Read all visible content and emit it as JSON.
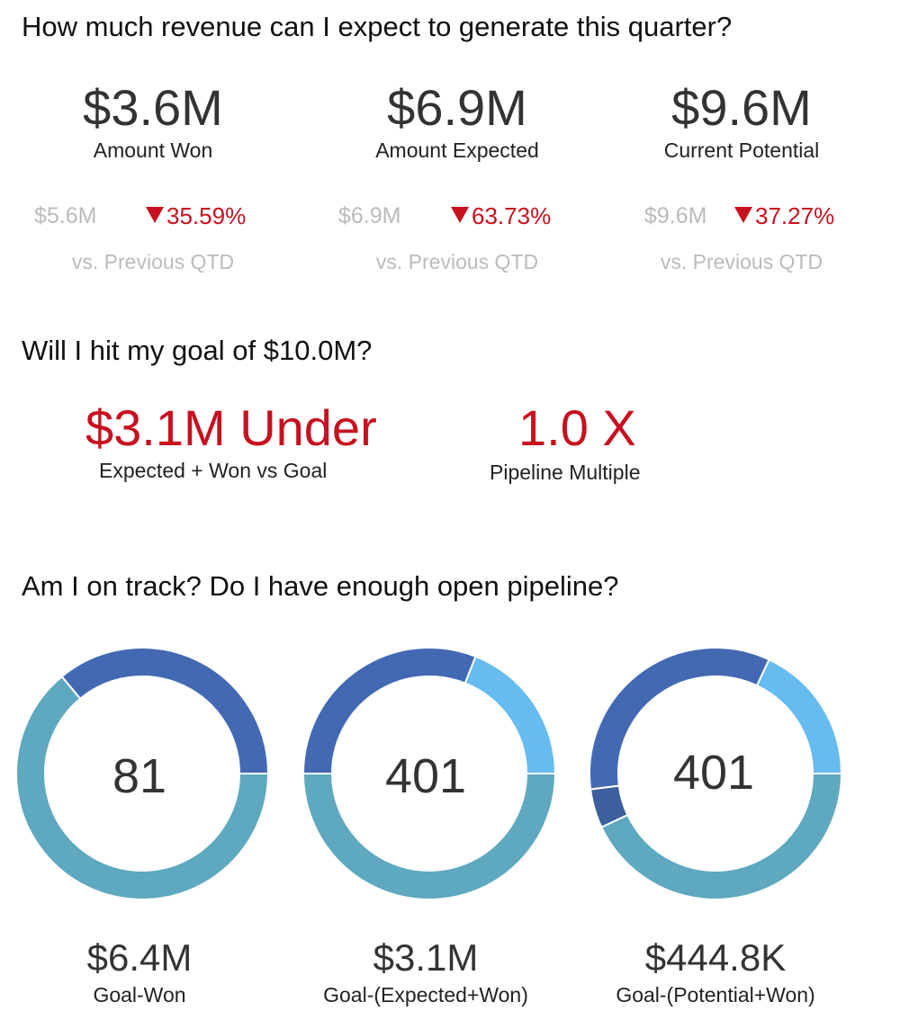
{
  "section1": {
    "title": "How much revenue can I expect to generate this quarter?",
    "kpis": [
      {
        "value": "$3.6M",
        "label": "Amount Won",
        "prev": "$5.6M",
        "delta": "35.59%",
        "vs": "vs. Previous QTD"
      },
      {
        "value": "$6.9M",
        "label": "Amount Expected",
        "prev": "$6.9M",
        "delta": "63.73%",
        "vs": "vs. Previous QTD"
      },
      {
        "value": "$9.6M",
        "label": "Current Potential",
        "prev": "$9.6M",
        "delta": "37.27%",
        "vs": "vs. Previous QTD"
      }
    ]
  },
  "section2": {
    "title": "Will I hit my goal of $10.0M?",
    "under_value": "$3.1M Under",
    "under_label": "Expected + Won vs Goal",
    "multiple_value": "1.0 X",
    "multiple_label": "Pipeline Multiple"
  },
  "section3": {
    "title": "Am I on track? Do I have enough open pipeline?",
    "donuts": [
      {
        "center": "81",
        "value": "$6.4M",
        "label": "Goal-Won"
      },
      {
        "center": "401",
        "value": "$3.1M",
        "label": "Goal-(Expected+Won)"
      },
      {
        "center": "401",
        "value": "$444.8K",
        "label": "Goal-(Potential+Won)"
      }
    ]
  },
  "colors": {
    "negative": "#c8101e",
    "teal": "#5ea8c0",
    "dark_blue": "#4369b3",
    "light_blue": "#66bbf0",
    "navy": "#3d5f9e",
    "muted": "#bbbbbb"
  },
  "chart_data": [
    {
      "type": "pie",
      "center_label": "81",
      "slices": [
        {
          "color": "#5ea8c0",
          "fraction": 0.64
        },
        {
          "color": "#4369b3",
          "fraction": 0.36
        }
      ]
    },
    {
      "type": "pie",
      "center_label": "401",
      "slices": [
        {
          "color": "#5ea8c0",
          "fraction": 0.5
        },
        {
          "color": "#4369b3",
          "fraction": 0.31
        },
        {
          "color": "#66bbf0",
          "fraction": 0.19
        }
      ]
    },
    {
      "type": "pie",
      "center_label": "401",
      "slices": [
        {
          "color": "#5ea8c0",
          "fraction": 0.43
        },
        {
          "color": "#3d5f9e",
          "fraction": 0.05
        },
        {
          "color": "#4369b3",
          "fraction": 0.34
        },
        {
          "color": "#66bbf0",
          "fraction": 0.18
        }
      ]
    }
  ]
}
